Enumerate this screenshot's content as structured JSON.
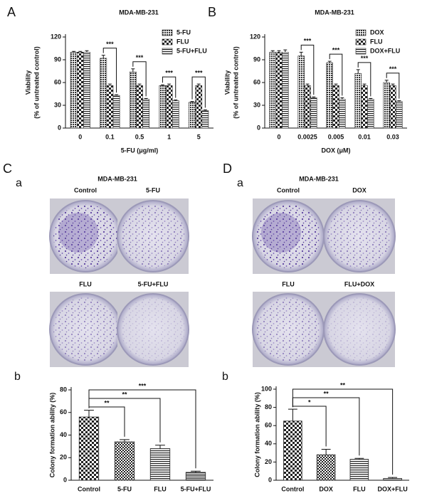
{
  "chart_data": [
    {
      "type": "grouped-bar",
      "label": "A",
      "title": "MDA-MB-231",
      "x_label": "5-FU (μg/ml)",
      "y_label": "Viability",
      "y_sublabel": "(% of untreated control)",
      "categories": [
        "0",
        "0.1",
        "0.5",
        "1",
        "5"
      ],
      "series": [
        {
          "name": "5-FU",
          "pattern": "dots",
          "values": [
            100,
            92,
            74,
            56,
            34
          ],
          "errors": [
            1,
            4,
            4,
            1,
            1
          ]
        },
        {
          "name": "FLU",
          "pattern": "checker",
          "values": [
            100,
            56,
            56,
            56,
            56
          ],
          "errors": [
            1,
            2,
            2,
            2,
            2
          ]
        },
        {
          "name": "5-FU+FLU",
          "pattern": "hlines",
          "values": [
            100,
            43,
            38,
            36,
            23
          ],
          "errors": [
            2,
            1,
            1,
            1,
            1
          ]
        }
      ],
      "ylim": [
        0,
        120
      ],
      "yticks": [
        0,
        30,
        60,
        90,
        120
      ],
      "legend": "upper right",
      "annotations": [
        "***",
        "***",
        "***",
        "***"
      ]
    },
    {
      "type": "grouped-bar",
      "label": "B",
      "title": "MDA-MB-231",
      "x_label": "DOX (μM)",
      "y_label": "Viability",
      "y_sublabel": "(% of untreated control)",
      "categories": [
        "0",
        "0.0025",
        "0.005",
        "0.01",
        "0.03"
      ],
      "series": [
        {
          "name": "DOX",
          "pattern": "dots",
          "values": [
            100,
            95,
            86,
            72,
            60
          ],
          "errors": [
            2,
            5,
            2,
            5,
            3
          ]
        },
        {
          "name": "FLU",
          "pattern": "checker",
          "values": [
            100,
            56,
            56,
            56,
            56
          ],
          "errors": [
            2,
            2,
            2,
            2,
            2
          ]
        },
        {
          "name": "DOX+FLU",
          "pattern": "hlines",
          "values": [
            100,
            40,
            38,
            38,
            35
          ],
          "errors": [
            3,
            1,
            2,
            1,
            1
          ]
        }
      ],
      "ylim": [
        0,
        120
      ],
      "yticks": [
        0,
        30,
        60,
        90,
        120
      ],
      "legend": "upper right",
      "annotations": [
        "***",
        "***",
        "***",
        "***"
      ]
    },
    {
      "type": "bar",
      "label": "b",
      "y_label": "Colony formation ability (%)",
      "categories": [
        "Control",
        "5-FU",
        "FLU",
        "5-FU+FLU"
      ],
      "values": [
        56,
        34,
        28,
        7
      ],
      "errors": [
        6,
        2,
        3,
        1
      ],
      "patterns": [
        "checker",
        "checker-small",
        "hlines",
        "hlines-dense"
      ],
      "ylim": [
        0,
        80
      ],
      "yticks": [
        0,
        20,
        40,
        60,
        80
      ],
      "annotations": [
        "**",
        "**",
        "***"
      ]
    },
    {
      "type": "bar",
      "label": "b",
      "y_label": "Colony formation ability (%)",
      "categories": [
        "Control",
        "DOX",
        "FLU",
        "DOX+FLU"
      ],
      "values": [
        65,
        28,
        23,
        2
      ],
      "errors": [
        13,
        6,
        1,
        1
      ],
      "patterns": [
        "checker",
        "checker-small",
        "hlines",
        "hlines-dense"
      ],
      "ylim": [
        0,
        100
      ],
      "yticks": [
        0,
        20,
        40,
        60,
        80,
        100
      ],
      "annotations": [
        "*",
        "**",
        "**"
      ]
    }
  ],
  "photos": [
    {
      "letter": "C",
      "sub": "a",
      "title": "MDA-MB-231",
      "labels": [
        "Control",
        "5-FU",
        "FLU",
        "5-FU+FLU"
      ]
    },
    {
      "letter": "D",
      "sub": "a",
      "title": "MDA-MB-231",
      "labels": [
        "Control",
        "DOX",
        "FLU",
        "FLU+DOX"
      ]
    }
  ]
}
